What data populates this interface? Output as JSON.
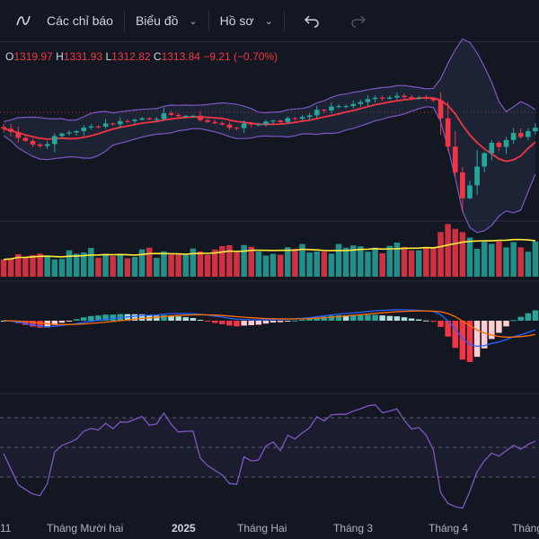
{
  "toolbar": {
    "indicators_label": "Các chỉ báo",
    "chart_label": "Biểu đồ",
    "profile_label": "Hồ sơ",
    "undo_icon": "undo-icon",
    "redo_icon": "redo-icon",
    "indicators_icon": "indicators-icon"
  },
  "ohlc": {
    "o_label": "O",
    "o": "1319.97",
    "h_label": "H",
    "h": "1331.93",
    "l_label": "L",
    "l": "1312.82",
    "c_label": "C",
    "c": "1313.84",
    "change": "−9.21 (−0.70%)"
  },
  "time_axis": [
    "11",
    "Tháng Mười hai",
    "2025",
    "Tháng Hai",
    "Tháng 3",
    "Tháng 4",
    "Tháng"
  ],
  "colors": {
    "up": "#26a69a",
    "down": "#f23645",
    "band": "#7e57c2",
    "basis": "#f23645",
    "volume_ma": "#ffeb3b",
    "macd": "#2962ff",
    "signal": "#ff6d00",
    "rsi": "#7e57c2"
  },
  "chart_data": {
    "type": "candlestick",
    "price": [
      1290,
      1286,
      1281,
      1277,
      1272,
      1270,
      1274,
      1280,
      1284,
      1286,
      1288,
      1290,
      1292,
      1294,
      1296,
      1296,
      1298,
      1300,
      1300,
      1302,
      1302,
      1303,
      1306,
      1304,
      1306,
      1305,
      1303,
      1301,
      1298,
      1296,
      1294,
      1292,
      1292,
      1294,
      1295,
      1296,
      1298,
      1300,
      1299,
      1301,
      1302,
      1304,
      1307,
      1310,
      1312,
      1314,
      1316,
      1317,
      1318,
      1321,
      1323,
      1325,
      1326,
      1327,
      1328,
      1328,
      1327,
      1326,
      1324,
      1322,
      1300,
      1270,
      1240,
      1210,
      1225,
      1245,
      1262,
      1274,
      1270,
      1278,
      1284,
      1282,
      1288,
      1290
    ],
    "volume_ma_trend": "rising",
    "oscillator_panes": [
      "MACD",
      "RSI"
    ]
  }
}
